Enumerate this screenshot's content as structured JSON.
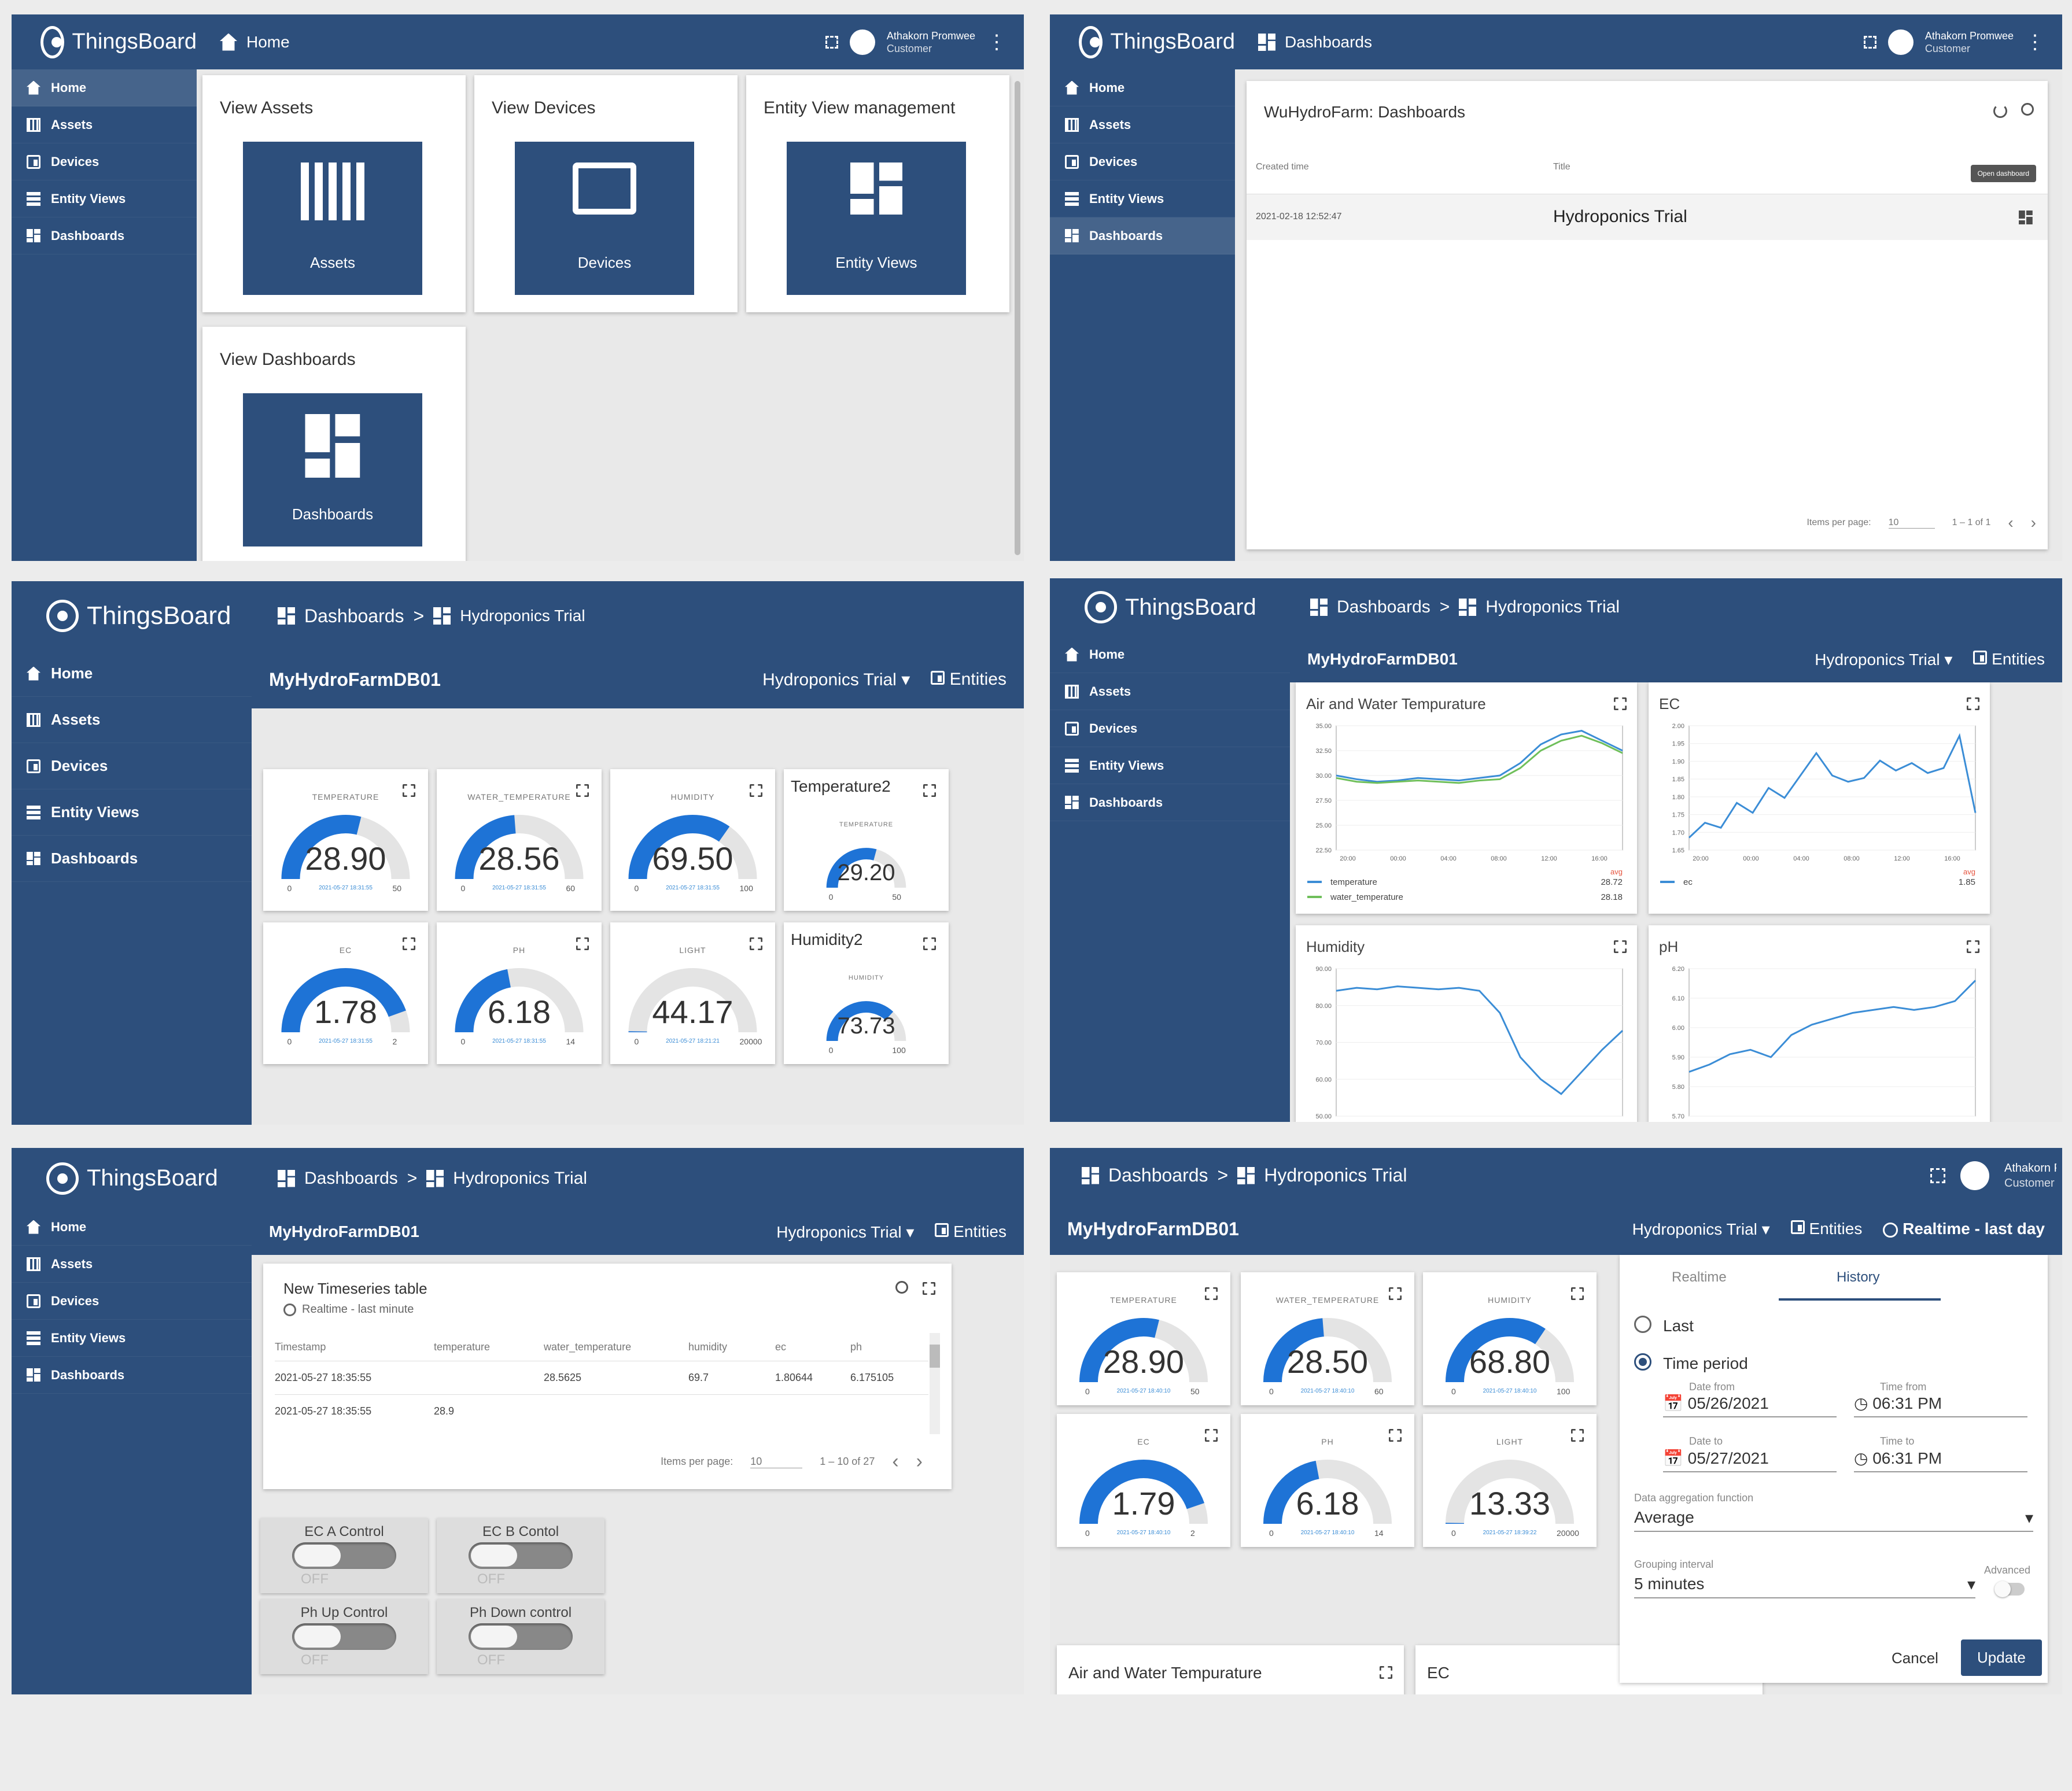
{
  "brand": "ThingsBoard",
  "user": {
    "name": "Athakorn Promwee",
    "role": "Customer"
  },
  "nav": [
    "Home",
    "Assets",
    "Devices",
    "Entity Views",
    "Dashboards"
  ],
  "p1": {
    "crumb": "Home",
    "cards": [
      {
        "title": "View Assets",
        "tile": "Assets"
      },
      {
        "title": "View Devices",
        "tile": "Devices"
      },
      {
        "title": "Entity View management",
        "tile": "Entity Views"
      },
      {
        "title": "View Dashboards",
        "tile": "Dashboards"
      }
    ]
  },
  "p2": {
    "crumb": "Dashboards",
    "list_title": "WuHydroFarm: Dashboards",
    "col_created": "Created time",
    "col_title": "Title",
    "open_btn": "Open dashboard",
    "row_time": "2021-02-18 12:52:47",
    "row_title": "Hydroponics Trial",
    "items_per_page_label": "Items per page:",
    "items_per_page": "10",
    "range": "1 – 1 of 1"
  },
  "crumb_dash": "Dashboards",
  "crumb_trial": "Hydroponics Trial",
  "farm": "MyHydroFarmDB01",
  "dash_select": "Hydroponics Trial",
  "entities": "Entities",
  "p3": {
    "gauges": [
      {
        "label": "TEMPERATURE",
        "value": "28.90",
        "min": "0",
        "max": "50",
        "frac": 0.578,
        "ts": "2021-05-27 18:31:55"
      },
      {
        "label": "WATER_TEMPERATURE",
        "value": "28.56",
        "min": "0",
        "max": "60",
        "frac": 0.476,
        "ts": "2021-05-27 18:31:55"
      },
      {
        "label": "HUMIDITY",
        "value": "69.50",
        "min": "0",
        "max": "100",
        "frac": 0.695,
        "ts": "2021-05-27 18:31:55"
      },
      {
        "label": "EC",
        "value": "1.78",
        "min": "0",
        "max": "2",
        "frac": 0.89,
        "ts": "2021-05-27 18:31:55"
      },
      {
        "label": "PH",
        "value": "6.18",
        "min": "0",
        "max": "14",
        "frac": 0.441,
        "ts": "2021-05-27 18:31:55"
      },
      {
        "label": "LIGHT",
        "value": "44.17",
        "min": "0",
        "max": "20000",
        "frac": 0.002,
        "ts": "2021-05-27 18:21:21"
      }
    ],
    "small_gauges": [
      {
        "title": "Temperature2",
        "label": "TEMPERATURE",
        "value": "29.20",
        "min": "0",
        "max": "50",
        "frac": 0.584
      },
      {
        "title": "Humidity2",
        "label": "HUMIDITY",
        "value": "73.73",
        "min": "0",
        "max": "100",
        "frac": 0.737
      }
    ]
  },
  "p4": {
    "charts": [
      {
        "title": "Air and Water Tempurature",
        "yticks": [
          "35.00",
          "32.50",
          "30.00",
          "27.50",
          "25.00",
          "22.50"
        ],
        "legend": [
          {
            "name": "temperature",
            "avg": "28.72",
            "color": "#3b8dd6"
          },
          {
            "name": "water_temperature",
            "avg": "28.18",
            "color": "#6fbf5a"
          }
        ]
      },
      {
        "title": "EC",
        "yticks": [
          "2.00",
          "1.95",
          "1.90",
          "1.85",
          "1.80",
          "1.75",
          "1.70",
          "1.65"
        ],
        "legend": [
          {
            "name": "ec",
            "avg": "1.85",
            "color": "#3b8dd6"
          }
        ]
      },
      {
        "title": "Humidity",
        "yticks": [
          "90.00",
          "80.00",
          "70.00",
          "60.00",
          "50.00"
        ],
        "legend": []
      },
      {
        "title": "pH",
        "yticks": [
          "6.20",
          "6.10",
          "6.00",
          "5.90",
          "5.80",
          "5.70"
        ],
        "legend": []
      }
    ],
    "xticks": [
      "20:00",
      "00:00",
      "04:00",
      "08:00",
      "12:00",
      "16:00"
    ],
    "avg_label": "avg"
  },
  "p5": {
    "table_title": "New Timeseries table",
    "table_sub": "Realtime - last minute",
    "cols": [
      "Timestamp",
      "temperature",
      "water_temperature",
      "humidity",
      "ec",
      "ph"
    ],
    "rows": [
      [
        "2021-05-27 18:35:55",
        "",
        "28.5625",
        "69.7",
        "1.80644",
        "6.175105"
      ],
      [
        "2021-05-27 18:35:55",
        "28.9",
        "",
        "",
        "",
        ""
      ]
    ],
    "items_per_page": "10",
    "range": "1 – 10 of 27",
    "switches": [
      {
        "label": "EC A Control",
        "state": "OFF"
      },
      {
        "label": "EC B Contol",
        "state": "OFF"
      },
      {
        "label": "Ph Up Control",
        "state": "OFF"
      },
      {
        "label": "Ph Down control",
        "state": "OFF"
      }
    ]
  },
  "p6": {
    "realtime": "Realtime - last day",
    "tabs": [
      "Realtime",
      "History"
    ],
    "opt_last": "Last",
    "opt_period": "Time period",
    "date_from_label": "Date from",
    "date_from": "05/26/2021",
    "time_from_label": "Time from",
    "time_from": "06:31 PM",
    "date_to_label": "Date to",
    "date_to": "05/27/2021",
    "time_to_label": "Time to",
    "time_to": "06:31 PM",
    "agg_label": "Data aggregation function",
    "agg": "Average",
    "group_label": "Grouping interval",
    "group": "5 minutes",
    "advanced": "Advanced",
    "cancel": "Cancel",
    "update": "Update",
    "gauges": [
      {
        "label": "TEMPERATURE",
        "value": "28.90",
        "min": "0",
        "max": "50",
        "frac": 0.578,
        "ts": "2021-05-27 18:40:10"
      },
      {
        "label": "WATER_TEMPERATURE",
        "value": "28.50",
        "min": "0",
        "max": "60",
        "frac": 0.475,
        "ts": "2021-05-27 18:40:10"
      },
      {
        "label": "HUMIDITY",
        "value": "68.80",
        "min": "0",
        "max": "100",
        "frac": 0.688,
        "ts": "2021-05-27 18:40:10"
      },
      {
        "label": "EC",
        "value": "1.79",
        "min": "0",
        "max": "2",
        "frac": 0.895,
        "ts": "2021-05-27 18:40:10"
      },
      {
        "label": "PH",
        "value": "6.18",
        "min": "0",
        "max": "14",
        "frac": 0.441,
        "ts": "2021-05-27 18:40:10"
      },
      {
        "label": "LIGHT",
        "value": "13.33",
        "min": "0",
        "max": "20000",
        "frac": 0.001,
        "ts": "2021-05-27 18:39:22"
      }
    ],
    "bottom_cards": [
      "Air and Water Tempurature",
      "EC"
    ]
  }
}
